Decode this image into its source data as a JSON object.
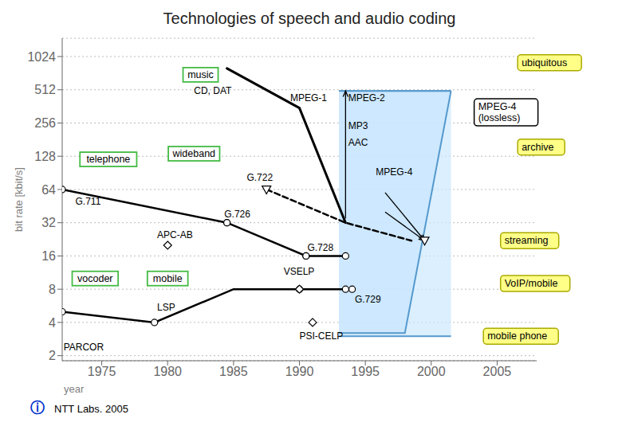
{
  "chart_data": {
    "type": "line",
    "title": "Technologies of speech and audio coding",
    "x_label": "year",
    "y_label": "bit rate [kbit/s]",
    "log": "y",
    "grid": true,
    "xlim": [
      1972,
      2008
    ],
    "xticks": [
      1975,
      1980,
      1985,
      1990,
      1995,
      2000,
      2005
    ],
    "ylim": [
      1.8,
      1500
    ],
    "yticks": [
      2,
      4,
      8,
      16,
      32,
      64,
      128,
      256,
      512,
      1024
    ],
    "series": [
      {
        "type": "line",
        "x": [
          1984.5,
          1990.0,
          1993.5
        ],
        "values": [
          800,
          350,
          32
        ],
        "color": "#000000",
        "line_style": "solid"
      },
      {
        "type": "line",
        "x": [
          1972,
          1984.5,
          1990.5,
          1993.5
        ],
        "values": [
          64,
          32,
          16,
          16
        ],
        "color": "#000000",
        "line_style": "solid",
        "marker": "circle"
      },
      {
        "type": "line",
        "x": [
          1972,
          1979,
          1985,
          1990,
          1993.5
        ],
        "values": [
          5,
          4,
          8,
          8,
          8
        ],
        "color": "#000000",
        "line_style": "solid"
      },
      {
        "type": "line",
        "x": [
          1987.5,
          1993.5,
          1998.5
        ],
        "values": [
          64,
          32,
          22
        ],
        "color": "#000000",
        "line_style": "dashed"
      },
      {
        "type": "scatter",
        "x": [
          1972,
          1979,
          1990,
          1993.5,
          1994,
          1984.5,
          1990.5
        ],
        "values": [
          5,
          4,
          8,
          8,
          8,
          32,
          16
        ],
        "color": "#000000",
        "marker": "circle"
      },
      {
        "type": "scatter",
        "x": [
          1980,
          1990,
          1991
        ],
        "values": [
          20,
          8,
          4
        ],
        "color": "#000000",
        "marker": "diamond"
      },
      {
        "type": "scatter",
        "x": [
          1987.5,
          1999.5
        ],
        "values": [
          64,
          22
        ],
        "color": "#000000",
        "marker": "triangle_down"
      }
    ],
    "regions": [
      {
        "x": [
          1993.0,
          2001.5
        ],
        "low": [
          3.0,
          3.0
        ],
        "high": [
          500,
          500
        ],
        "color": "#cce8ff"
      },
      {
        "x": [
          1993.0,
          1998.0,
          2001.5
        ],
        "low": [
          3.2,
          3.2,
          500
        ],
        "high": [
          500,
          500,
          500
        ],
        "color": "#c8e5ff"
      }
    ],
    "arrows": [
      {
        "x": [
          1993.5,
          1993.5
        ],
        "y": [
          35,
          500
        ]
      },
      {
        "x": [
          1996.5,
          1999.5
        ],
        "y": [
          60,
          22
        ]
      },
      {
        "x": [
          1996.5,
          1999.5
        ],
        "y": [
          40,
          22
        ]
      }
    ],
    "box_labels": [
      {
        "text": "music",
        "x": 1982.5,
        "y": 700,
        "color": "#44bb44"
      },
      {
        "text": "wideband",
        "x": 1982.0,
        "y": 135,
        "color": "#44bb44"
      },
      {
        "text": "telephone",
        "x": 1975.5,
        "y": 120,
        "color": "#44bb44"
      },
      {
        "text": "vocoder",
        "x": 1974.5,
        "y": 10,
        "color": "#44bb44"
      },
      {
        "text": "mobile",
        "x": 1980.0,
        "y": 10,
        "color": "#44bb44"
      }
    ],
    "annotations": [
      {
        "text": "G.711",
        "x": 1973.0,
        "y": 50
      },
      {
        "text": "APC-AB",
        "x": 1979.2,
        "y": 25
      },
      {
        "text": "G.726",
        "x": 1984.3,
        "y": 38
      },
      {
        "text": "G.728",
        "x": 1990.6,
        "y": 19
      },
      {
        "text": "G.722",
        "x": 1986.0,
        "y": 82
      },
      {
        "text": "CD, DAT",
        "x": 1982.0,
        "y": 500
      },
      {
        "text": "MPEG-1",
        "x": 1989.3,
        "y": 430
      },
      {
        "text": "MPEG-2",
        "x": 1993.7,
        "y": 430
      },
      {
        "text": "MP3",
        "x": 1993.7,
        "y": 240
      },
      {
        "text": "AAC",
        "x": 1993.7,
        "y": 170
      },
      {
        "text": "MPEG-4",
        "x": 1995.8,
        "y": 92
      },
      {
        "text": "VSELP",
        "x": 1988.8,
        "y": 11.5
      },
      {
        "text": "PSI-CELP",
        "x": 1990.0,
        "y": 3.0
      },
      {
        "text": "LSP",
        "x": 1979.2,
        "y": 5.5
      },
      {
        "text": "PARCOR",
        "x": 1972.1,
        "y": 2.4
      },
      {
        "text": "G.729",
        "x": 1994.2,
        "y": 6.5
      }
    ],
    "callouts": [
      {
        "text": "ubiquitous",
        "x": 2006.8,
        "y": 900,
        "color": "#ffff88",
        "edge_color": "#aaaa00"
      },
      {
        "text": "MPEG-4\n(lossless)",
        "x": 2003.5,
        "y": 320,
        "color": "#ffffff",
        "edge_color": "#000000"
      },
      {
        "text": "archive",
        "x": 2006.8,
        "y": 155,
        "color": "#ffff88",
        "edge_color": "#aaaa00"
      },
      {
        "text": "streaming",
        "x": 2005.5,
        "y": 22,
        "color": "#ffff88",
        "edge_color": "#aaaa00"
      },
      {
        "text": "VoIP/mobile",
        "x": 2005.5,
        "y": 9,
        "color": "#ffff88",
        "edge_color": "#aaaa00"
      },
      {
        "text": "mobile phone",
        "x": 2004.2,
        "y": 3.0,
        "color": "#ffff88",
        "edge_color": "#aaaa00"
      }
    ],
    "footer": [
      {
        "text": "ⓘ",
        "color": "#0033cc"
      },
      {
        "text": "NTT Labs. 2005",
        "color": "#000000"
      }
    ]
  }
}
